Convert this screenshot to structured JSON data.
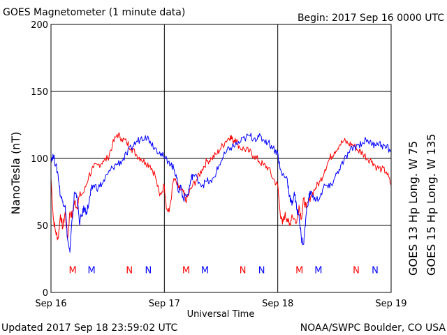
{
  "header": {
    "title": "GOES Magnetometer (1 minute data)",
    "begin": "Begin:  2017 Sep 16 0000 UTC"
  },
  "footer": {
    "updated": "Updated 2017 Sep 18 23:59:02 UTC",
    "credit": "NOAA/SWPC Boulder, CO USA"
  },
  "colors": {
    "goes13": "#ff0000",
    "goes15": "#0000ff",
    "axis": "#000000"
  },
  "chart_data": {
    "type": "line",
    "ylabel": "NanoTesla (nT)",
    "xlabel": "Universal Time",
    "ylim": [
      0,
      200
    ],
    "xlim_hours": [
      0,
      72
    ],
    "x_unit": "hours since 2017 Sep 16 0000 UTC",
    "y_ticks": [
      "0",
      "50",
      "100",
      "150",
      "200"
    ],
    "x_ticks": [
      {
        "hour": 0,
        "label": "Sep 16"
      },
      {
        "hour": 24,
        "label": "Sep 17"
      },
      {
        "hour": 48,
        "label": "Sep 18"
      },
      {
        "hour": 72,
        "label": "Sep 19"
      }
    ],
    "grid": true,
    "legend_placement": "right, vertical",
    "series": [
      {
        "name": "GOES 13 Hp  Long. W 75",
        "color": "#ff0000",
        "points": [
          [
            0,
            85
          ],
          [
            0.5,
            55
          ],
          [
            1,
            45
          ],
          [
            1.5,
            40
          ],
          [
            2,
            58
          ],
          [
            2.5,
            48
          ],
          [
            3,
            60
          ],
          [
            3.5,
            40
          ],
          [
            4,
            60
          ],
          [
            4.5,
            57
          ],
          [
            5,
            68
          ],
          [
            5.5,
            63
          ],
          [
            6,
            72
          ],
          [
            7,
            75
          ],
          [
            8,
            87
          ],
          [
            9,
            93
          ],
          [
            10,
            95
          ],
          [
            11,
            98
          ],
          [
            12,
            100
          ],
          [
            13,
            110
          ],
          [
            14,
            118
          ],
          [
            15,
            115
          ],
          [
            16,
            112
          ],
          [
            17,
            108
          ],
          [
            18,
            103
          ],
          [
            19,
            100
          ],
          [
            20,
            97
          ],
          [
            21,
            95
          ],
          [
            22,
            88
          ],
          [
            23,
            72
          ],
          [
            24,
            80
          ],
          [
            24.5,
            62
          ],
          [
            25,
            60
          ],
          [
            26,
            85
          ],
          [
            27,
            78
          ],
          [
            28,
            75
          ],
          [
            28.5,
            68
          ],
          [
            29,
            72
          ],
          [
            30,
            80
          ],
          [
            31,
            85
          ],
          [
            32,
            92
          ],
          [
            33,
            98
          ],
          [
            34,
            100
          ],
          [
            35,
            103
          ],
          [
            36,
            108
          ],
          [
            37,
            113
          ],
          [
            38,
            117
          ],
          [
            38.5,
            113
          ],
          [
            39,
            115
          ],
          [
            40,
            108
          ],
          [
            41,
            107
          ],
          [
            42,
            105
          ],
          [
            43,
            102
          ],
          [
            44,
            98
          ],
          [
            45,
            95
          ],
          [
            46,
            93
          ],
          [
            47,
            85
          ],
          [
            48,
            80
          ],
          [
            48.5,
            60
          ],
          [
            49,
            51
          ],
          [
            49.5,
            58
          ],
          [
            50,
            55
          ],
          [
            50.5,
            50
          ],
          [
            51,
            58
          ],
          [
            52,
            52
          ],
          [
            52.5,
            65
          ],
          [
            53,
            55
          ],
          [
            53.5,
            70
          ],
          [
            54,
            63
          ],
          [
            55,
            72
          ],
          [
            56,
            78
          ],
          [
            57,
            83
          ],
          [
            58,
            92
          ],
          [
            59,
            100
          ],
          [
            60,
            105
          ],
          [
            61,
            110
          ],
          [
            62,
            113
          ],
          [
            63,
            111
          ],
          [
            64,
            110
          ],
          [
            65,
            106
          ],
          [
            66,
            104
          ],
          [
            67,
            100
          ],
          [
            68,
            98
          ],
          [
            69,
            93
          ],
          [
            70,
            92
          ],
          [
            71,
            90
          ],
          [
            72,
            80
          ]
        ]
      },
      {
        "name": "GOES 15 Hp  Long. W 135",
        "color": "#0000ff",
        "points": [
          [
            0,
            100
          ],
          [
            0.5,
            102
          ],
          [
            1,
            95
          ],
          [
            1.5,
            88
          ],
          [
            2,
            72
          ],
          [
            2.5,
            68
          ],
          [
            3,
            65
          ],
          [
            3.5,
            40
          ],
          [
            4,
            30
          ],
          [
            4.5,
            55
          ],
          [
            5,
            75
          ],
          [
            5.5,
            72
          ],
          [
            6,
            52
          ],
          [
            6.5,
            57
          ],
          [
            7,
            63
          ],
          [
            7.5,
            60
          ],
          [
            8,
            66
          ],
          [
            8.5,
            76
          ],
          [
            9,
            80
          ],
          [
            10,
            78
          ],
          [
            11,
            82
          ],
          [
            12,
            88
          ],
          [
            13,
            93
          ],
          [
            14,
            96
          ],
          [
            15,
            98
          ],
          [
            16,
            103
          ],
          [
            17,
            108
          ],
          [
            18,
            112
          ],
          [
            19,
            115
          ],
          [
            20,
            117
          ],
          [
            21,
            113
          ],
          [
            22,
            108
          ],
          [
            23,
            105
          ],
          [
            24,
            100
          ],
          [
            25,
            98
          ],
          [
            26,
            92
          ],
          [
            26.5,
            88
          ],
          [
            27,
            75
          ],
          [
            27.5,
            80
          ],
          [
            28,
            70
          ],
          [
            29,
            73
          ],
          [
            29.5,
            82
          ],
          [
            30,
            88
          ],
          [
            31,
            85
          ],
          [
            32,
            80
          ],
          [
            33,
            83
          ],
          [
            34,
            82
          ],
          [
            35,
            90
          ],
          [
            36,
            98
          ],
          [
            37,
            104
          ],
          [
            38,
            108
          ],
          [
            39,
            110
          ],
          [
            40,
            112
          ],
          [
            41,
            115
          ],
          [
            42,
            117
          ],
          [
            43,
            115
          ],
          [
            44,
            116
          ],
          [
            45,
            114
          ],
          [
            46,
            112
          ],
          [
            47,
            108
          ],
          [
            48,
            104
          ],
          [
            48.5,
            92
          ],
          [
            49,
            88
          ],
          [
            50,
            85
          ],
          [
            50.5,
            72
          ],
          [
            51,
            65
          ],
          [
            51.5,
            75
          ],
          [
            52,
            62
          ],
          [
            52.5,
            58
          ],
          [
            53,
            40
          ],
          [
            53.5,
            36
          ],
          [
            54,
            58
          ],
          [
            54.5,
            70
          ],
          [
            55,
            75
          ],
          [
            56,
            68
          ],
          [
            57,
            72
          ],
          [
            58,
            80
          ],
          [
            59,
            78
          ],
          [
            60,
            85
          ],
          [
            61,
            92
          ],
          [
            62,
            98
          ],
          [
            63,
            104
          ],
          [
            64,
            108
          ],
          [
            65,
            110
          ],
          [
            66,
            112
          ],
          [
            67,
            114
          ],
          [
            68,
            110
          ],
          [
            69,
            112
          ],
          [
            70,
            110
          ],
          [
            71,
            108
          ],
          [
            72,
            106
          ]
        ]
      }
    ],
    "markers": [
      {
        "label": "M",
        "hour": 4.6,
        "color": "#ff0000"
      },
      {
        "label": "M",
        "hour": 8.6,
        "color": "#0000ff"
      },
      {
        "label": "N",
        "hour": 16.6,
        "color": "#ff0000"
      },
      {
        "label": "N",
        "hour": 20.6,
        "color": "#0000ff"
      },
      {
        "label": "M",
        "hour": 28.6,
        "color": "#ff0000"
      },
      {
        "label": "M",
        "hour": 32.6,
        "color": "#0000ff"
      },
      {
        "label": "N",
        "hour": 40.6,
        "color": "#ff0000"
      },
      {
        "label": "N",
        "hour": 44.6,
        "color": "#0000ff"
      },
      {
        "label": "M",
        "hour": 52.6,
        "color": "#ff0000"
      },
      {
        "label": "M",
        "hour": 56.6,
        "color": "#0000ff"
      },
      {
        "label": "N",
        "hour": 64.6,
        "color": "#ff0000"
      },
      {
        "label": "N",
        "hour": 68.6,
        "color": "#0000ff"
      }
    ],
    "marker_level_nT": 17
  }
}
